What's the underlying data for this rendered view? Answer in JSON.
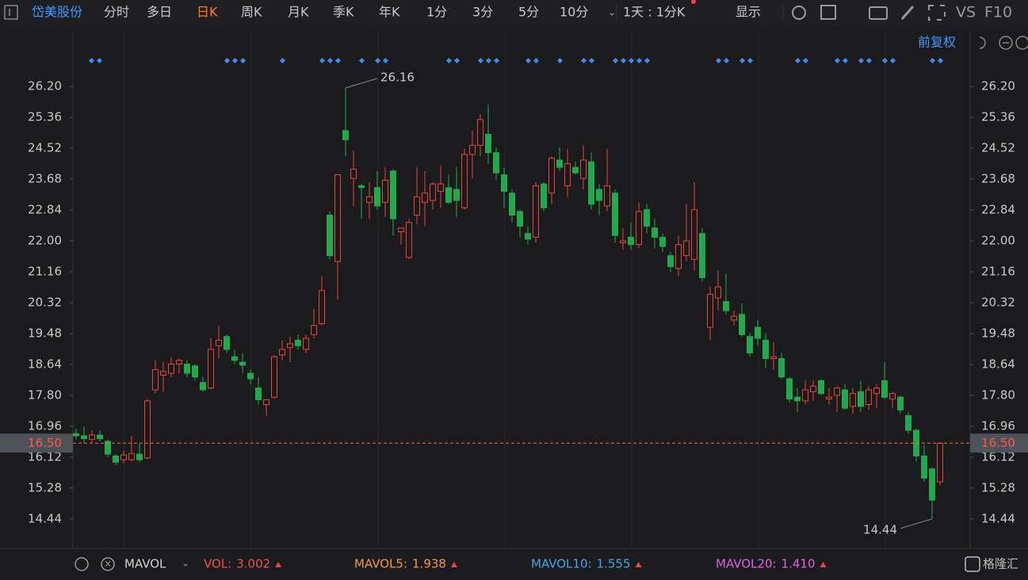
{
  "toolbar": {
    "stock_name": "岱美股份",
    "periods": [
      "分时",
      "多日",
      "日K",
      "周K",
      "月K",
      "季K",
      "年K",
      "1分",
      "3分",
      "5分",
      "10分"
    ],
    "active_period": 2,
    "interval": "1天 : 1分K",
    "display": "显示",
    "vs": "VS",
    "f10": "F10"
  },
  "adjust": "前复权",
  "indicator_bar": {
    "name": "MAVOL",
    "items": [
      {
        "label": "VOL:",
        "value": "3.002",
        "color": "#f0504a"
      },
      {
        "label": "MAVOL5:",
        "value": "1.938",
        "color": "#f09a3c"
      },
      {
        "label": "MAVOL10:",
        "value": "1.555",
        "color": "#3ca8e8"
      },
      {
        "label": "MAVOL20:",
        "value": "1.410",
        "color": "#e060e0"
      }
    ]
  },
  "logo": "格隆汇",
  "chart_data": {
    "type": "candlestick",
    "ylim": [
      13.64,
      27.69
    ],
    "yticks": [
      14.44,
      15.28,
      16.12,
      16.96,
      {
        "value": 17.8,
        "label": "17.80"
      },
      18.64,
      19.48,
      20.32,
      21.16,
      {
        "value": 22.0,
        "label": "22.00"
      },
      22.84,
      23.68,
      24.52,
      25.36,
      {
        "value": 26.2,
        "label": "26.20"
      }
    ],
    "up_color": "#e8453c",
    "down_color": "#22a94e",
    "current_price": {
      "value": 16.5,
      "label": "16.50"
    },
    "max_label": 26.16,
    "min_label": 14.44,
    "open": [
      16.76,
      16.7,
      16.6,
      16.72,
      16.55,
      16.15,
      16.05,
      16.05,
      16.2,
      16.1,
      17.95,
      18.35,
      18.4,
      18.65,
      18.65,
      18.6,
      18.15,
      18.0,
      19.15,
      19.4,
      18.85,
      18.7,
      18.4,
      18.0,
      17.55,
      17.75,
      18.9,
      19.1,
      19.3,
      19.05,
      19.45,
      19.75,
      22.7,
      21.44,
      25.0,
      23.7,
      23.5,
      23.05,
      23.45,
      23.05,
      23.9,
      22.25,
      21.55,
      22.7,
      23.05,
      23.1,
      23.35,
      23.45,
      23.4,
      22.9,
      24.35,
      24.6,
      24.9,
      24.4,
      23.8,
      23.3,
      22.8,
      22.2,
      22.1,
      23.55,
      23.3,
      24.2,
      23.5,
      24.0,
      23.7,
      24.15,
      23.4,
      22.95,
      23.3,
      21.95,
      22.1,
      21.9,
      22.85,
      22.35,
      22.1,
      21.6,
      21.25,
      21.6,
      21.5,
      22.2,
      19.65,
      20.45,
      20.35,
      19.85,
      20.0,
      19.4,
      19.65,
      19.3,
      18.8,
      18.8,
      18.25,
      17.75,
      17.65,
      17.9,
      18.2,
      17.7,
      17.8,
      17.95,
      17.5,
      17.9,
      17.55,
      17.85,
      18.2,
      17.7,
      17.75,
      17.25,
      16.85,
      16.15,
      15.8,
      15.45
    ],
    "high": [
      16.9,
      16.95,
      16.85,
      16.85,
      16.6,
      16.2,
      16.3,
      16.7,
      16.5,
      17.7,
      18.75,
      18.7,
      18.85,
      18.8,
      18.75,
      18.65,
      18.3,
      19.35,
      19.7,
      19.45,
      19.05,
      18.95,
      18.5,
      18.3,
      17.7,
      18.9,
      19.3,
      19.4,
      19.45,
      19.45,
      20.15,
      21.05,
      22.8,
      23.8,
      26.16,
      24.45,
      23.55,
      23.6,
      23.9,
      24.0,
      23.95,
      22.35,
      22.6,
      24.0,
      23.9,
      23.6,
      24.05,
      23.8,
      24.0,
      24.5,
      25.0,
      25.45,
      25.7,
      24.55,
      24.0,
      23.4,
      22.85,
      22.4,
      23.6,
      23.6,
      24.3,
      24.55,
      24.5,
      24.15,
      24.6,
      24.4,
      23.55,
      24.5,
      23.4,
      22.35,
      22.5,
      23.05,
      23.0,
      22.6,
      22.2,
      21.7,
      22.15,
      23.0,
      23.6,
      22.35,
      20.75,
      21.2,
      21.1,
      20.1,
      20.3,
      19.5,
      19.85,
      19.5,
      19.25,
      18.95,
      18.3,
      18.0,
      18.2,
      18.2,
      18.25,
      18.0,
      18.05,
      18.1,
      18.0,
      18.2,
      18.05,
      18.1,
      18.7,
      17.9,
      17.8,
      17.35,
      16.9,
      16.45,
      15.85,
      16.52
    ],
    "low": [
      16.6,
      16.5,
      16.5,
      16.55,
      16.12,
      15.9,
      15.95,
      16.0,
      15.98,
      16.05,
      17.85,
      17.9,
      18.3,
      18.4,
      18.3,
      18.2,
      17.9,
      17.95,
      18.8,
      18.95,
      18.65,
      18.4,
      18.1,
      17.55,
      17.25,
      17.7,
      18.75,
      18.7,
      19.05,
      18.95,
      19.35,
      19.7,
      21.5,
      20.4,
      24.3,
      22.95,
      22.6,
      22.6,
      22.85,
      22.65,
      22.15,
      21.9,
      21.5,
      22.45,
      22.4,
      22.85,
      22.9,
      23.0,
      22.65,
      22.85,
      23.7,
      24.3,
      24.1,
      23.65,
      22.9,
      22.5,
      22.1,
      21.9,
      21.95,
      22.8,
      23.0,
      23.9,
      23.2,
      23.8,
      23.4,
      22.85,
      22.7,
      22.8,
      21.95,
      21.75,
      21.75,
      21.8,
      22.2,
      21.8,
      21.7,
      21.15,
      21.05,
      21.45,
      21.2,
      20.9,
      19.3,
      20.1,
      20.0,
      19.7,
      19.4,
      18.85,
      19.15,
      18.55,
      18.5,
      18.25,
      17.6,
      17.35,
      17.55,
      17.65,
      17.8,
      17.55,
      17.35,
      17.4,
      17.3,
      17.35,
      17.4,
      17.45,
      17.7,
      17.45,
      17.3,
      16.75,
      16.0,
      15.45,
      14.44,
      15.35
    ],
    "close": [
      16.7,
      16.62,
      16.72,
      16.62,
      16.2,
      15.98,
      16.18,
      16.22,
      16.05,
      17.65,
      18.5,
      18.45,
      18.65,
      18.75,
      18.4,
      18.3,
      17.95,
      19.05,
      19.3,
      19.05,
      18.75,
      18.62,
      18.25,
      17.68,
      17.68,
      18.85,
      19.05,
      19.2,
      19.15,
      19.35,
      19.7,
      20.65,
      21.6,
      23.8,
      24.75,
      23.95,
      23.45,
      23.2,
      22.95,
      23.65,
      22.6,
      22.35,
      22.5,
      23.2,
      23.3,
      23.55,
      23.55,
      23.05,
      23.1,
      24.35,
      24.6,
      25.3,
      24.4,
      23.85,
      23.35,
      22.7,
      22.4,
      22.05,
      23.5,
      22.9,
      24.25,
      24.0,
      24.1,
      23.85,
      24.2,
      23.0,
      23.1,
      23.5,
      22.15,
      22.0,
      21.9,
      22.8,
      22.4,
      22.1,
      21.85,
      21.3,
      21.9,
      22.0,
      22.85,
      21.0,
      20.55,
      20.75,
      20.1,
      19.95,
      19.45,
      18.95,
      19.35,
      18.8,
      18.85,
      18.3,
      17.7,
      17.65,
      17.95,
      18.05,
      17.85,
      17.75,
      18.0,
      17.45,
      17.85,
      17.5,
      17.95,
      18.0,
      17.75,
      17.85,
      17.4,
      16.85,
      16.15,
      15.55,
      14.95,
      16.5
    ]
  }
}
